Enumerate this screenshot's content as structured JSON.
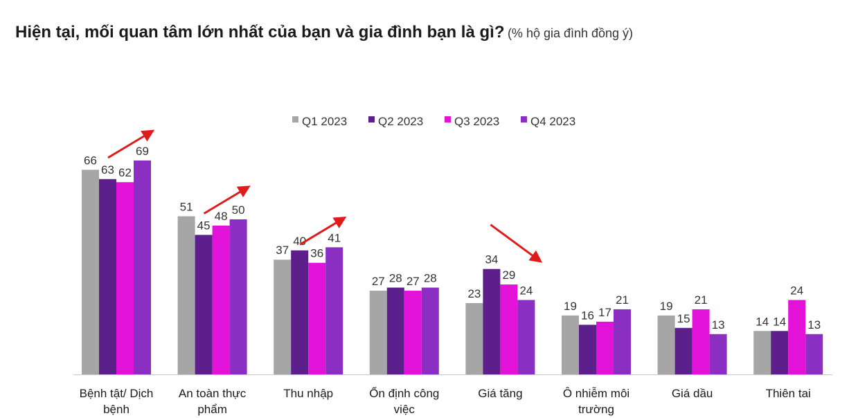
{
  "header": {
    "title": "Hiện tại, mối quan tâm lớn nhất của bạn và gia đình bạn là gì?",
    "subtitle": "(% hộ gia đình đồng ý)"
  },
  "chart_data": {
    "type": "bar",
    "title": "Hiện tại, mối quan tâm lớn nhất của bạn và gia đình bạn là gì?",
    "subtitle": "(% hộ gia đình đồng ý)",
    "categories": [
      [
        "Bệnh tật/ Dịch",
        "bệnh"
      ],
      [
        "An toàn thực",
        "phẩm"
      ],
      [
        "Thu nhập"
      ],
      [
        "Ổn định công",
        "việc"
      ],
      [
        "Giá tăng"
      ],
      [
        "Ô nhiễm môi",
        "trường"
      ],
      [
        "Giá dầu"
      ],
      [
        "Thiên tai"
      ]
    ],
    "series": [
      {
        "name": "Q1 2023",
        "color": "#a6a6a6",
        "values": [
          66,
          51,
          37,
          27,
          23,
          19,
          19,
          14
        ]
      },
      {
        "name": "Q2 2023",
        "color": "#5c1f8c",
        "values": [
          63,
          45,
          40,
          28,
          34,
          16,
          15,
          14
        ]
      },
      {
        "name": "Q3 2023",
        "color": "#e312d8",
        "values": [
          62,
          48,
          36,
          27,
          29,
          17,
          21,
          24
        ]
      },
      {
        "name": "Q4 2023",
        "color": "#8a2fc2",
        "values": [
          69,
          50,
          41,
          28,
          24,
          21,
          13,
          13
        ]
      }
    ],
    "ylim": [
      0,
      75
    ],
    "grid": false,
    "legend_position": "top-center",
    "annotations": [
      {
        "type": "arrow",
        "direction": "up",
        "category_index": 0,
        "color": "#e01b1b"
      },
      {
        "type": "arrow",
        "direction": "up",
        "category_index": 1,
        "color": "#e01b1b"
      },
      {
        "type": "arrow",
        "direction": "up",
        "category_index": 2,
        "color": "#e01b1b"
      },
      {
        "type": "arrow",
        "direction": "down",
        "category_index": 4,
        "color": "#e01b1b"
      }
    ]
  }
}
